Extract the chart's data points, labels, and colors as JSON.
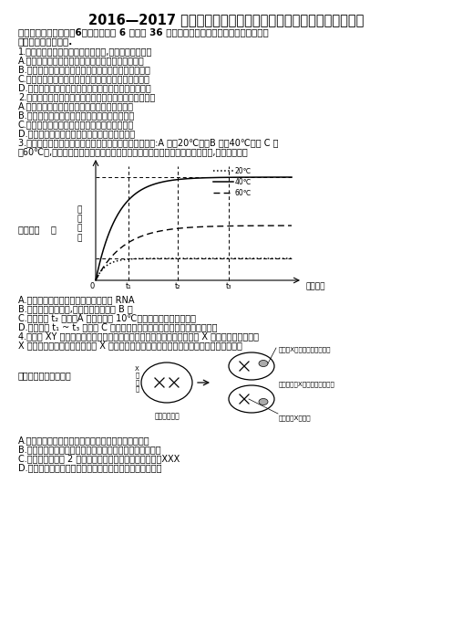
{
  "title": "2016—2017 学年四川省遂宁市射洪中学高三（上）入学生物试卷",
  "sec_line1": "一、选择题：本大题公6小题，每小题 6 分，公 36 分。在每小题给出的四个选项中，只有一",
  "sec_line2": "项是符合题目要求的.",
  "q1": "1.　下列关于细胞结构与功能的说法,正确的是（　　）",
  "q1a": "A.　细胞膜两侧的离子浓度差是通过主动运输实现的",
  "q1b": "B.　颤藻和衣藻都能通过叶绳体的光合作用合成有机物",
  "q1c": "C.　细胞膜与线粒体膜、核膜中所含蛋白质的功能相同",
  "q1d": "D.　膜中的磷脂分子是由胆固醇、脂肪酸和磷酸组成的",
  "q2": "2.　下列有关细胞生命历程的说法，不正确的是（　　）",
  "q2a": "A.　草履虫细胞的核质比例会影响其体积的大小",
  "q2b": "B.　动物细胞中的原癌基因能阻止细胞无限增殖",
  "q2c": "C.　人体通过细胞凋亡完成对被感染细胞的清除",
  "q2d": "D.　青蛙的受精卵和早期胚胎细胞都具有全能性",
  "q3_line1": "3.　为了研究温度对某种酶活性的影响，设置三个实验组:A 组（20℃）、B 组（40℃）和 C 组",
  "q3_line2": "（60℃）,测定各组在不同反应时间内的产物浓度（其他条件相同），结果如图,下列叙述不正",
  "ylabel": "产\n物\n浓\n度",
  "xlabel": "反应时间",
  "q3a": "A.　生物体内酶的化学本质是蛋白质或 RNA",
  "q3b": "B.　三个温度条件下,该酶活性最高的是 B 组",
  "q3c": "C.　在时间 t₂ 之前，A 组温度提高 10℃后催化反应的速度会加快",
  "q3d": "D.　在时间 t₁ ~ t₃ 时，向 C 组反应体系中增加底物后产物总量会有所增加",
  "q4_line1": "4.　猫是 XY 型性别决定的二倍体生物，当猫细胞中存在两条或两条以上 X 染色体时，只有一条",
  "q4_line2": "X 染色体上的基因能表达，其余 X 染色体高度螺旋化失活成为巴氏小体，如图所示，则相关",
  "q4_text": "说法不正确的是（　）",
  "diag_label_barr": "失活后X染色体（巴氏小体）",
  "diag_label_div": "细胞分裂和X染色体的随机失活",
  "diag_label_active": "有活性的X染色体",
  "diag_label_embryo": "早期胚胎细胞",
  "q4a": "A.　可以使用龙胆紫或醉酸洋红液对巴氏小体进行染色",
  "q4b": "B.　通过观察体细胞中是否有巴氏小体能区分正常猫的性别",
  "q4c": "C.　体细胞中含有 2 个巴氏小体的雌猫的性染色体组成为XXX",
  "q4d": "D.　巴氏小体上的基因不能表达的原因主要是翻译过程受阻"
}
